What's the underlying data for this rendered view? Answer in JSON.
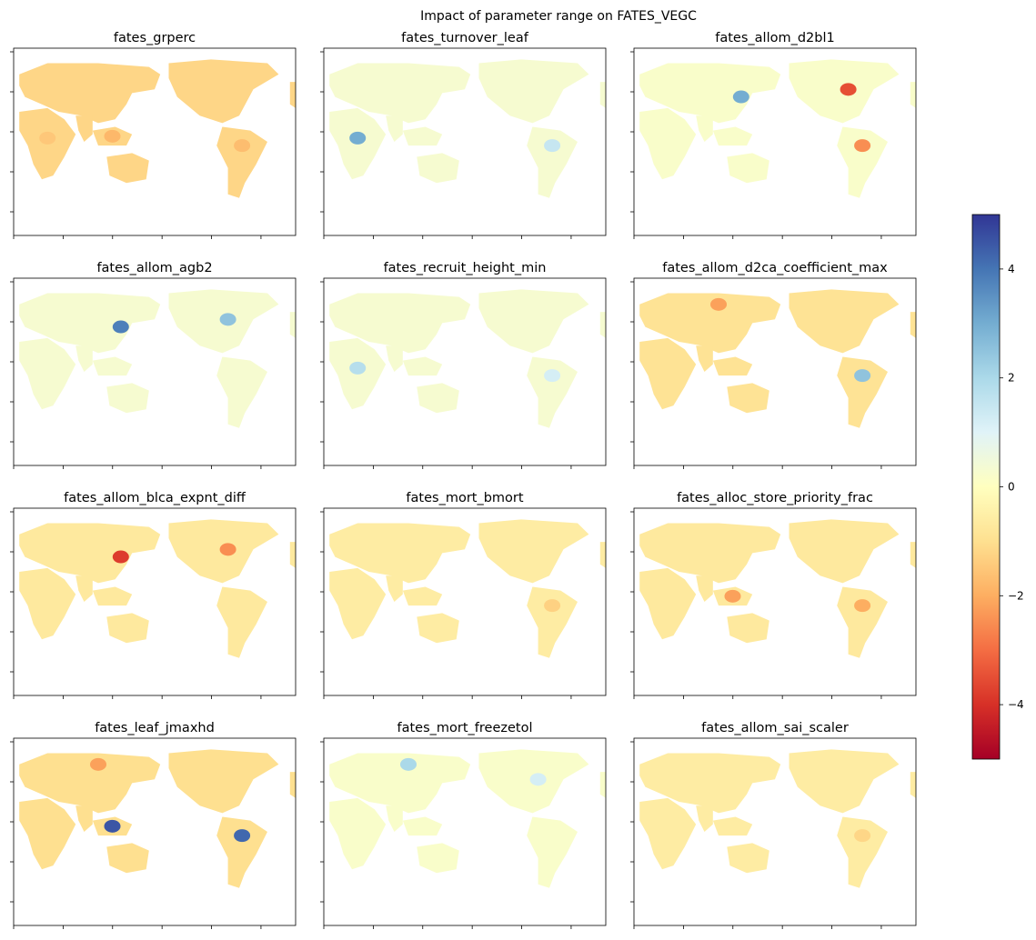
{
  "figure": {
    "title": "Impact of parameter range on FATES_VEGC"
  },
  "chart_data": {
    "type": "heatmap",
    "title": "Impact of parameter range on FATES_VEGC",
    "grid": false,
    "layout": "4 rows x 3 columns of global maps",
    "colormap": "RdYlBu",
    "colorbar": {
      "vmin": -5,
      "vmax": 5,
      "ticks": [
        -4,
        -2,
        0,
        2,
        4
      ],
      "tick_labels": [
        "−4",
        "−2",
        "0",
        "2",
        "4"
      ],
      "stops": [
        "#a50026",
        "#d73027",
        "#f46d43",
        "#fdae61",
        "#fee090",
        "#ffffbf",
        "#e0f3f8",
        "#abd9e9",
        "#74add1",
        "#4575b4",
        "#313695"
      ]
    },
    "panels": [
      {
        "title": "fates_grperc",
        "dominant_value": -1.2,
        "hotspots": [
          {
            "region": "southeast-asia",
            "value": -1.8
          },
          {
            "region": "south-america",
            "value": -1.7
          },
          {
            "region": "central-africa",
            "value": -1.5
          }
        ]
      },
      {
        "title": "fates_turnover_leaf",
        "dominant_value": 0.3,
        "hotspots": [
          {
            "region": "central-africa",
            "value": 3.0
          },
          {
            "region": "south-america",
            "value": 1.5
          }
        ]
      },
      {
        "title": "fates_allom_d2bl1",
        "dominant_value": 0.2,
        "hotspots": [
          {
            "region": "north-america",
            "value": -3.5
          },
          {
            "region": "south-america",
            "value": -2.5
          },
          {
            "region": "east-asia",
            "value": 3.0
          }
        ]
      },
      {
        "title": "fates_allom_agb2",
        "dominant_value": 0.3,
        "hotspots": [
          {
            "region": "east-asia",
            "value": 3.8
          },
          {
            "region": "north-america",
            "value": 2.5
          }
        ]
      },
      {
        "title": "fates_recruit_height_min",
        "dominant_value": 0.3,
        "hotspots": [
          {
            "region": "central-africa",
            "value": 1.8
          },
          {
            "region": "south-america",
            "value": 1.2
          }
        ]
      },
      {
        "title": "fates_allom_d2ca_coefficient_max",
        "dominant_value": -0.9,
        "hotspots": [
          {
            "region": "siberia",
            "value": -2.2
          },
          {
            "region": "south-america",
            "value": 2.5
          }
        ]
      },
      {
        "title": "fates_allom_blca_expnt_diff",
        "dominant_value": -0.7,
        "hotspots": [
          {
            "region": "east-asia",
            "value": -3.8
          },
          {
            "region": "north-america",
            "value": -2.5
          }
        ]
      },
      {
        "title": "fates_mort_bmort",
        "dominant_value": -0.6,
        "hotspots": [
          {
            "region": "south-america",
            "value": -1.3
          }
        ]
      },
      {
        "title": "fates_alloc_store_priority_frac",
        "dominant_value": -0.7,
        "hotspots": [
          {
            "region": "south-america",
            "value": -2.0
          },
          {
            "region": "southeast-asia",
            "value": -2.2
          }
        ]
      },
      {
        "title": "fates_leaf_jmaxhd",
        "dominant_value": -1.0,
        "hotspots": [
          {
            "region": "southeast-asia",
            "value": 4.5
          },
          {
            "region": "south-america",
            "value": 4.2
          },
          {
            "region": "siberia",
            "value": -2.2
          }
        ]
      },
      {
        "title": "fates_mort_freezetol",
        "dominant_value": 0.2,
        "hotspots": [
          {
            "region": "siberia",
            "value": 2.0
          },
          {
            "region": "north-america",
            "value": 1.2
          }
        ]
      },
      {
        "title": "fates_allom_sai_scaler",
        "dominant_value": -0.6,
        "hotspots": [
          {
            "region": "south-america",
            "value": -1.2
          }
        ]
      }
    ]
  }
}
